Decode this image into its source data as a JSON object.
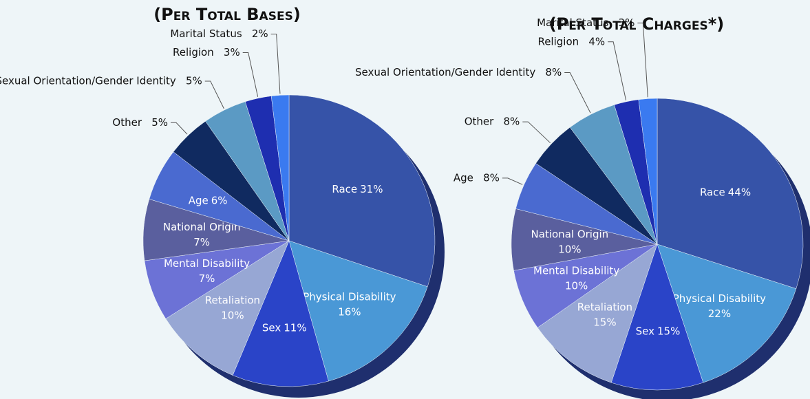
{
  "chart_data": [
    {
      "type": "pie",
      "title": "(Per Total Bases)",
      "categories": [
        "Race",
        "Physical Disability",
        "Sex",
        "Retaliation",
        "Mental Disability",
        "National Origin",
        "Age",
        "Other",
        "Sexual Orientation/Gender Identity",
        "Religion",
        "Marital Status"
      ],
      "values": [
        31,
        16,
        11,
        10,
        7,
        7,
        6,
        5,
        5,
        3,
        2
      ],
      "value_labels": [
        "31%",
        "16%",
        "11%",
        "10%",
        "7%",
        "7%",
        "6%",
        "5%",
        "5%",
        "3%",
        "2%"
      ],
      "colors": [
        "#3653a8",
        "#4a98d6",
        "#2a44c8",
        "#97a7d4",
        "#6c72d6",
        "#5a5f9e",
        "#4a6ad0",
        "#102a60",
        "#5b9ac4",
        "#1e2eb0",
        "#3a7af0"
      ]
    },
    {
      "type": "pie",
      "title": "(Per Total Charges*)",
      "categories": [
        "Race",
        "Physical Disability",
        "Sex",
        "Retaliation",
        "Mental Disability",
        "National Origin",
        "Age",
        "Other",
        "Sexual Orientation/Gender Identity",
        "Religion",
        "Marital Status"
      ],
      "values": [
        44,
        22,
        15,
        15,
        10,
        10,
        8,
        8,
        8,
        4,
        3
      ],
      "value_labels": [
        "44%",
        "22%",
        "15%",
        "15%",
        "10%",
        "10%",
        "8%",
        "8%",
        "8%",
        "4%",
        "3%"
      ],
      "colors": [
        "#3653a8",
        "#4a98d6",
        "#2a44c8",
        "#97a7d4",
        "#6c72d6",
        "#5a5f9e",
        "#4a6ad0",
        "#102a60",
        "#5b9ac4",
        "#1e2eb0",
        "#3a7af0"
      ]
    }
  ]
}
